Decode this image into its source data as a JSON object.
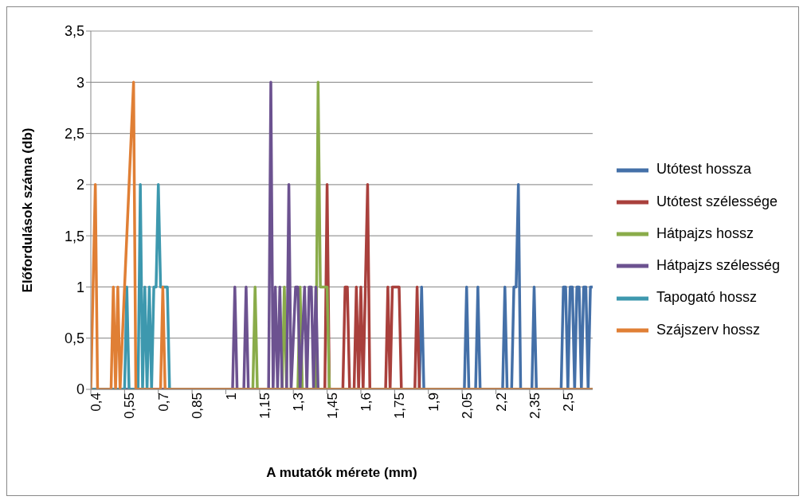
{
  "chart_data": {
    "type": "line",
    "xlabel": "A mutatók mérete (mm)",
    "ylabel": "Előfordulások száma (db)",
    "xlim": [
      0.4,
      2.63
    ],
    "xticks": [
      {
        "value": 0.4,
        "label": "0,4"
      },
      {
        "value": 0.55,
        "label": "0,55"
      },
      {
        "value": 0.7,
        "label": "0,7"
      },
      {
        "value": 0.85,
        "label": "0,85"
      },
      {
        "value": 1,
        "label": "1"
      },
      {
        "value": 1.15,
        "label": "1,15"
      },
      {
        "value": 1.3,
        "label": "1,3"
      },
      {
        "value": 1.45,
        "label": "1,45"
      },
      {
        "value": 1.6,
        "label": "1,6"
      },
      {
        "value": 1.75,
        "label": "1,75"
      },
      {
        "value": 1.9,
        "label": "1,9"
      },
      {
        "value": 2.05,
        "label": "2,05"
      },
      {
        "value": 2.2,
        "label": "2,2"
      },
      {
        "value": 2.35,
        "label": "2,35"
      },
      {
        "value": 2.5,
        "label": "2,5"
      }
    ],
    "ylim": [
      0,
      3.5
    ],
    "yticks": [
      0,
      {
        "value": 0.5,
        "label": "0,5"
      },
      1,
      {
        "value": 1.5,
        "label": "1,5"
      },
      2,
      {
        "value": 2.5,
        "label": "2,5"
      },
      3,
      {
        "value": 3.5,
        "label": "3,5"
      }
    ],
    "grid": "y",
    "legend": "right",
    "line_style": "solid",
    "series": [
      {
        "name": "Utótest hossza",
        "color": "#4470a8",
        "x": [
          0.4,
          1.86,
          1.87,
          1.88,
          2.06,
          2.07,
          2.08,
          2.11,
          2.12,
          2.13,
          2.23,
          2.24,
          2.25,
          2.27,
          2.28,
          2.29,
          2.3,
          2.31,
          2.36,
          2.37,
          2.38,
          2.49,
          2.5,
          2.51,
          2.52,
          2.53,
          2.54,
          2.55,
          2.56,
          2.57,
          2.58,
          2.59,
          2.6,
          2.61,
          2.62,
          2.63
        ],
        "values": [
          0,
          0,
          1,
          0,
          0,
          1,
          0,
          0,
          1,
          0,
          0,
          1,
          0,
          0,
          1,
          1,
          2,
          0,
          0,
          1,
          0,
          0,
          1,
          1,
          0,
          1,
          1,
          0,
          1,
          1,
          0,
          1,
          1,
          0,
          1,
          1
        ]
      },
      {
        "name": "Utótest szélessége",
        "color": "#a9403c",
        "x": [
          0.4,
          1.44,
          1.45,
          1.46,
          1.52,
          1.53,
          1.54,
          1.55,
          1.57,
          1.58,
          1.59,
          1.6,
          1.61,
          1.62,
          1.63,
          1.64,
          1.71,
          1.72,
          1.73,
          1.74,
          1.75,
          1.76,
          1.77,
          1.78,
          1.84,
          1.85,
          1.86,
          2.63
        ],
        "values": [
          0,
          0,
          2,
          0,
          0,
          1,
          1,
          0,
          0,
          1,
          0,
          1,
          0,
          1,
          2,
          0,
          0,
          1,
          0,
          1,
          1,
          1,
          1,
          0,
          0,
          1,
          0,
          0
        ]
      },
      {
        "name": "Hátpajzs hossz",
        "color": "#8aac4a",
        "x": [
          0.4,
          1.12,
          1.13,
          1.14,
          1.25,
          1.26,
          1.27,
          1.32,
          1.33,
          1.34,
          1.4,
          1.41,
          1.42,
          1.43,
          1.44,
          1.45,
          1.46,
          2.63
        ],
        "values": [
          0,
          0,
          1,
          0,
          0,
          1,
          0,
          0,
          1,
          0,
          0,
          3,
          1,
          1,
          1,
          1,
          0,
          0
        ]
      },
      {
        "name": "Hátpajzs szélesség",
        "color": "#6c5290",
        "x": [
          0.4,
          1.03,
          1.04,
          1.05,
          1.08,
          1.09,
          1.1,
          1.19,
          1.2,
          1.21,
          1.22,
          1.23,
          1.24,
          1.25,
          1.27,
          1.28,
          1.29,
          1.31,
          1.32,
          1.33,
          1.35,
          1.36,
          1.37,
          1.38,
          1.39,
          1.4,
          1.41,
          2.63
        ],
        "values": [
          0,
          0,
          1,
          0,
          0,
          1,
          0,
          0,
          3,
          0,
          1,
          0,
          1,
          0,
          0,
          2,
          0,
          1,
          1,
          0,
          1,
          0,
          1,
          1,
          0,
          1,
          0,
          0
        ]
      },
      {
        "name": "Tapogató hossz",
        "color": "#3d98ae",
        "x": [
          0.4,
          0.55,
          0.56,
          0.57,
          0.61,
          0.62,
          0.63,
          0.64,
          0.65,
          0.66,
          0.67,
          0.68,
          0.69,
          0.7,
          0.71,
          0.72,
          0.73,
          0.74,
          0.75,
          2.63
        ],
        "values": [
          0,
          0,
          1,
          0,
          0,
          2,
          0,
          1,
          0,
          1,
          0,
          1,
          1,
          2,
          1,
          1,
          1,
          1,
          0,
          0
        ]
      },
      {
        "name": "Szájszerv hossz",
        "color": "#e07f35",
        "x": [
          0.4,
          0.41,
          0.42,
          0.43,
          0.49,
          0.5,
          0.51,
          0.52,
          0.53,
          0.55,
          0.57,
          0.59,
          0.6,
          0.71,
          0.72,
          0.73,
          2.63
        ],
        "values": [
          0,
          1,
          2,
          0,
          0,
          1,
          0,
          1,
          0,
          1,
          2,
          3,
          0,
          0,
          1,
          0,
          0
        ]
      }
    ]
  }
}
